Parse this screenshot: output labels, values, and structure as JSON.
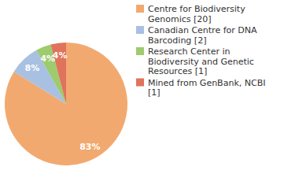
{
  "chart_data": {
    "type": "pie",
    "categories": [
      "Centre for Biodiversity Genomics [20]",
      "Canadian Centre for DNA Barcoding [2]",
      "Research Center in Biodiversity and Genetic Resources [1]",
      "Mined from GenBank, NCBI [1]"
    ],
    "values": [
      83,
      8,
      4,
      4
    ],
    "value_labels": [
      "83%",
      "8%",
      "4%",
      "4%"
    ],
    "colors": [
      "#f2a96f",
      "#a8c0e2",
      "#9dcb6e",
      "#e0735b"
    ],
    "data_labels": true,
    "legend": "right"
  }
}
